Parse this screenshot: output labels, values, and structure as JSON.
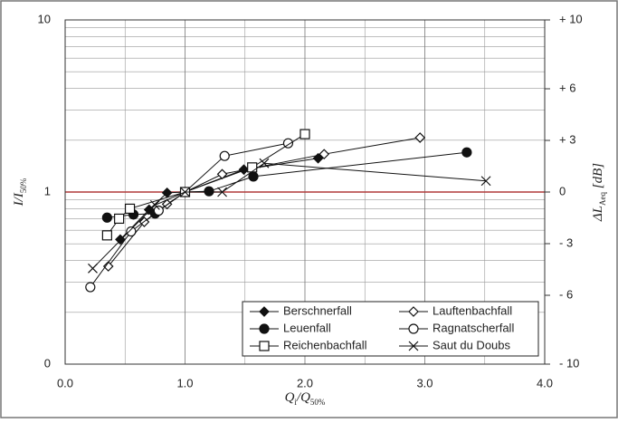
{
  "chart_data": {
    "type": "line",
    "xlabel": [
      {
        "text": "Q"
      },
      {
        "text": "i",
        "sub": true
      },
      {
        "text": "/Q"
      },
      {
        "text": "50%",
        "sub": true
      }
    ],
    "ylabel": [
      {
        "text": "I/I"
      },
      {
        "text": "50%",
        "sub": true
      }
    ],
    "y2label": [
      {
        "text": "ΔL"
      },
      {
        "text": "Aeq",
        "sub": true
      },
      {
        "text": " [dB]"
      }
    ],
    "xlim": [
      0,
      4
    ],
    "xticks": [
      {
        "value": 0,
        "label": "0.0"
      },
      {
        "value": 1,
        "label": "1.0"
      },
      {
        "value": 2,
        "label": "2.0"
      },
      {
        "value": 3,
        "label": "3.0"
      },
      {
        "value": 4,
        "label": "4.0"
      }
    ],
    "xminor": [
      0.5,
      1.5,
      2.5,
      3.5
    ],
    "ylim": [
      0.1,
      10
    ],
    "ylog": true,
    "yticks": [
      {
        "value": 0.1,
        "label": "0"
      },
      1,
      10
    ],
    "yminor": [
      0.2,
      0.3,
      0.4,
      0.5,
      0.6,
      0.7,
      0.8,
      0.9,
      2,
      3,
      4,
      5,
      6,
      7,
      8,
      9
    ],
    "reference_line": {
      "value": 1,
      "color": "#b03a3a"
    },
    "y2lim": [
      -10,
      10
    ],
    "y2ticks": [
      {
        "value": -10,
        "label": "- 10"
      },
      {
        "value": -6,
        "label": "- 6"
      },
      {
        "value": -3,
        "label": "- 3"
      },
      0,
      {
        "value": 3,
        "label": "+ 3"
      },
      {
        "value": 6,
        "label": "+ 6"
      },
      {
        "value": 10,
        "label": "+ 10"
      }
    ],
    "grid": true,
    "legend": "lower right",
    "series": [
      {
        "name": "Berschnerfall",
        "marker": "diamond-filled",
        "color": "#111111",
        "x": [
          0.46,
          0.7,
          0.85,
          1.0,
          1.49,
          2.11
        ],
        "values": [
          0.53,
          0.79,
          0.99,
          1.0,
          1.35,
          1.57
        ]
      },
      {
        "name": "Lauftenbachfall",
        "marker": "diamond-open",
        "color": "#111111",
        "x": [
          0.36,
          0.66,
          0.85,
          1.0,
          1.31,
          2.16,
          2.96
        ],
        "values": [
          0.37,
          0.67,
          0.85,
          1.0,
          1.27,
          1.66,
          2.07
        ]
      },
      {
        "name": "Leuenfall",
        "marker": "circle-filled",
        "color": "#111111",
        "x": [
          0.35,
          0.57,
          0.75,
          1.0,
          1.2,
          1.57,
          3.35
        ],
        "values": [
          0.71,
          0.74,
          0.75,
          1.0,
          1.01,
          1.23,
          1.7
        ]
      },
      {
        "name": "Ragnatscherfall",
        "marker": "circle-open",
        "color": "#111111",
        "x": [
          0.21,
          0.55,
          0.78,
          1.0,
          1.33,
          1.86
        ],
        "values": [
          0.28,
          0.59,
          0.78,
          1.0,
          1.62,
          1.92
        ]
      },
      {
        "name": "Reichenbachfall",
        "marker": "square-open",
        "color": "#111111",
        "x": [
          0.35,
          0.45,
          0.54,
          1.0,
          1.56,
          2.0
        ],
        "values": [
          0.56,
          0.7,
          0.8,
          1.0,
          1.39,
          2.17
        ]
      },
      {
        "name": "Saut du Doubs",
        "marker": "x",
        "color": "#111111",
        "x": [
          0.23,
          0.75,
          1.0,
          1.31,
          1.66,
          3.51
        ],
        "values": [
          0.36,
          0.84,
          1.0,
          1.0,
          1.47,
          1.16
        ]
      }
    ]
  }
}
